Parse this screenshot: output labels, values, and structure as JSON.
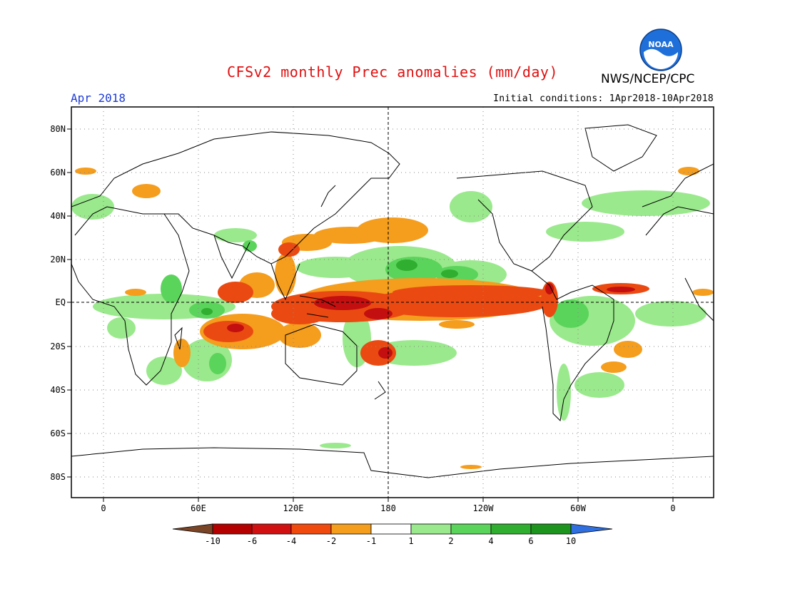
{
  "header": {
    "title": "CFSv2 monthly Prec anomalies (mm/day)",
    "organization": "NWS/NCEP/CPC",
    "logo_text": "NOAA",
    "period": "Apr 2018",
    "initial_conditions": "Initial conditions: 1Apr2018-10Apr2018"
  },
  "map": {
    "y_axis_labels": [
      "80N",
      "60N",
      "40N",
      "20N",
      "EQ",
      "20S",
      "40S",
      "60S",
      "80S"
    ],
    "x_axis_labels": [
      "0",
      "60E",
      "120E",
      "180",
      "120W",
      "60W",
      "0"
    ],
    "lon_range": [
      -20,
      380
    ],
    "lat_range": [
      -90,
      90
    ],
    "grid": "dotted",
    "equator_line": "dashed",
    "dateline": "dashed"
  },
  "colorbar": {
    "labels": [
      "-10",
      "-6",
      "-4",
      "-2",
      "-1",
      "1",
      "2",
      "4",
      "6",
      "10"
    ],
    "colors": [
      "#7a4426",
      "#b50000",
      "#d11111",
      "#f04a0f",
      "#f59d1d",
      "#ffffff",
      "#9ae98c",
      "#5bd45b",
      "#2fae2f",
      "#1d941d",
      "#2f6fe0"
    ]
  },
  "colors": {
    "title": "#e01010",
    "period": "#1f3bd6",
    "dry_strong": "#c30f0f",
    "dry_moderate": "#ea4a12",
    "dry_light": "#f59d1d",
    "wet_light": "#9ae98c",
    "wet_moderate": "#5bd45b",
    "wet_strong": "#2fae2f"
  }
}
